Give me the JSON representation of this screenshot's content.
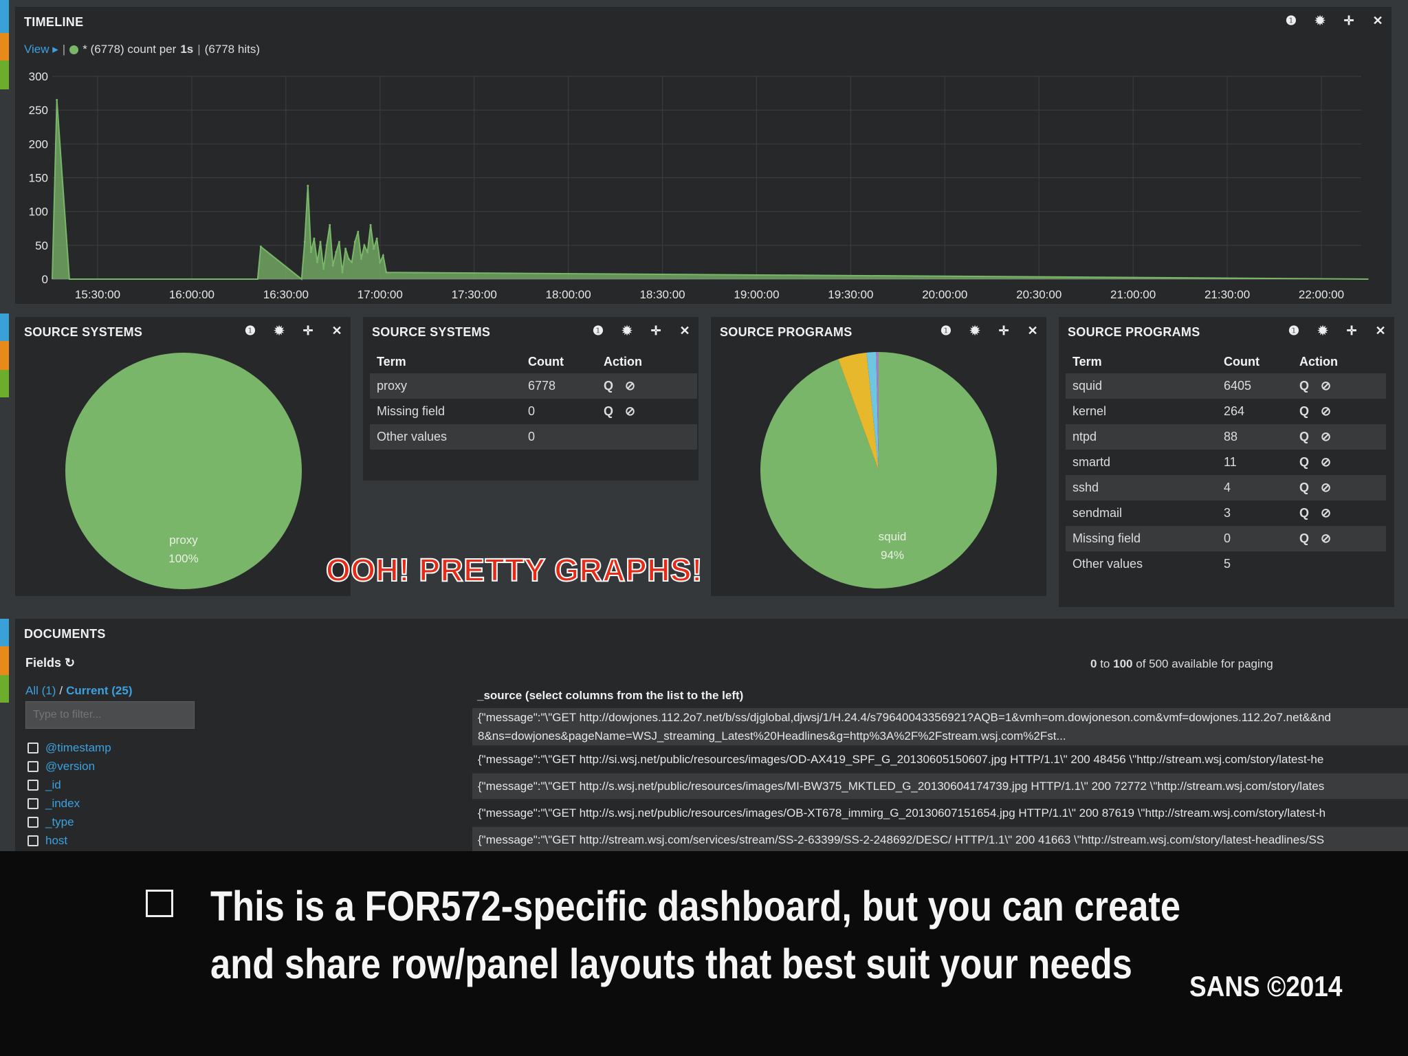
{
  "timeline": {
    "title": "TIMELINE",
    "view_label": "View ▸",
    "legend_text": "* (6778)  count per",
    "interval": "1s",
    "hits_text": "(6778 hits)",
    "y_ticks": [
      "300",
      "250",
      "200",
      "150",
      "100",
      "50",
      "0"
    ],
    "x_ticks": [
      "15:30:00",
      "16:00:00",
      "16:30:00",
      "17:00:00",
      "17:30:00",
      "18:00:00",
      "18:30:00",
      "19:00:00",
      "19:30:00",
      "20:00:00",
      "20:30:00",
      "21:00:00",
      "21:30:00",
      "22:00:00"
    ]
  },
  "chart_data": {
    "type": "line",
    "title": "",
    "xlabel": "",
    "ylabel": "",
    "ylim": [
      0,
      300
    ],
    "grid": true,
    "series": [
      {
        "name": "*",
        "color": "#7ab66a",
        "x": [
          "15:15:00",
          "15:17:00",
          "15:21:00",
          "16:21:00",
          "16:22:00",
          "16:35:00",
          "16:36:00",
          "16:37:00",
          "16:38:00",
          "16:39:00",
          "16:40:00",
          "16:41:00",
          "16:42:00",
          "16:43:00",
          "16:44:00",
          "16:45:00",
          "16:46:00",
          "16:47:00",
          "16:48:00",
          "16:49:00",
          "16:50:00",
          "16:51:00",
          "16:52:00",
          "16:53:00",
          "16:54:00",
          "16:55:00",
          "16:56:00",
          "16:57:00",
          "16:58:00",
          "16:59:00",
          "17:00:00",
          "17:01:00",
          "17:02:00",
          "22:15:00"
        ],
        "y": [
          0,
          265,
          0,
          0,
          48,
          0,
          55,
          138,
          40,
          60,
          25,
          55,
          15,
          50,
          80,
          20,
          40,
          55,
          10,
          45,
          30,
          25,
          55,
          70,
          30,
          50,
          40,
          80,
          45,
          60,
          25,
          35,
          10,
          0
        ]
      }
    ]
  },
  "source_systems_pie": {
    "title": "SOURCE SYSTEMS",
    "label": "proxy",
    "pct": "100%",
    "color": "#7ab66a"
  },
  "source_systems_table": {
    "title": "SOURCE SYSTEMS",
    "headers": [
      "Term",
      "Count",
      "Action"
    ],
    "rows": [
      [
        "proxy",
        "6778"
      ],
      [
        "Missing field",
        "0"
      ],
      [
        "Other values",
        "0"
      ]
    ],
    "action_text": "Q ⊘"
  },
  "source_programs_pie": {
    "title": "SOURCE PROGRAMS",
    "label": "squid",
    "pct": "94%",
    "slices": [
      {
        "name": "squid",
        "value": 6405,
        "color": "#7ab66a"
      },
      {
        "name": "kernel",
        "value": 264,
        "color": "#e7b82b"
      },
      {
        "name": "ntpd",
        "value": 88,
        "color": "#6fc6e0"
      },
      {
        "name": "other",
        "value": 23,
        "color": "#a07fc0"
      }
    ]
  },
  "source_programs_table": {
    "title": "SOURCE PROGRAMS",
    "headers": [
      "Term",
      "Count",
      "Action"
    ],
    "rows": [
      [
        "squid",
        "6405"
      ],
      [
        "kernel",
        "264"
      ],
      [
        "ntpd",
        "88"
      ],
      [
        "smartd",
        "11"
      ],
      [
        "sshd",
        "4"
      ],
      [
        "sendmail",
        "3"
      ],
      [
        "Missing field",
        "0"
      ],
      [
        "Other values",
        "5"
      ]
    ],
    "action_text": "Q ⊘"
  },
  "overlay_text": "OOH! PRETTY GRAPHS!",
  "documents": {
    "title": "DOCUMENTS",
    "fields_label": "Fields ↻",
    "all_label": "All (1)",
    "sep": "/",
    "current_label": "Current (25)",
    "filter_placeholder": "Type to filter...",
    "fields": [
      "@timestamp",
      "@version",
      "_id",
      "_index",
      "_type",
      "host"
    ],
    "paging_prefix": "0",
    "paging_to": "to",
    "paging_end": "100",
    "paging_suffix": "of 500 available for paging",
    "source_header": "_source (select columns from the list to the left)",
    "rows": [
      "{\"message\":\"\\\"GET http://dowjones.112.2o7.net/b/ss/djglobal,djwsj/1/H.24.4/s79640043356921?AQB=1&vmh=om.dowjoneson.com&vmf=dowjones.112.2o7.net&&nd",
      "8&ns=dowjones&pageName=WSJ_streaming_Latest%20Headlines&g=http%3A%2F%2Fstream.wsj.com%2Fst...",
      "{\"message\":\"\\\"GET http://si.wsj.net/public/resources/images/OD-AX419_SPF_G_20130605150607.jpg HTTP/1.1\\\" 200 48456 \\\"http://stream.wsj.com/story/latest-he",
      "{\"message\":\"\\\"GET http://s.wsj.net/public/resources/images/MI-BW375_MKTLED_G_20130604174739.jpg HTTP/1.1\\\" 200 72772 \\\"http://stream.wsj.com/story/lates",
      "{\"message\":\"\\\"GET http://s.wsj.net/public/resources/images/OB-XT678_immirg_G_20130607151654.jpg HTTP/1.1\\\" 200 87619 \\\"http://stream.wsj.com/story/latest-h",
      "{\"message\":\"\\\"GET http://stream.wsj.com/services/stream/SS-2-63399/SS-2-248692/DESC/ HTTP/1.1\\\" 200 41663 \\\"http://stream.wsj.com/story/latest-headlines/SS"
    ]
  },
  "caption": {
    "line1": "This is a FOR572-specific dashboard, but you can create",
    "line2": "and share row/panel layouts that best suit your needs",
    "copyright": "SANS ©2014"
  },
  "icons": [
    "info-icon",
    "gear-icon",
    "move-icon",
    "close-icon"
  ]
}
